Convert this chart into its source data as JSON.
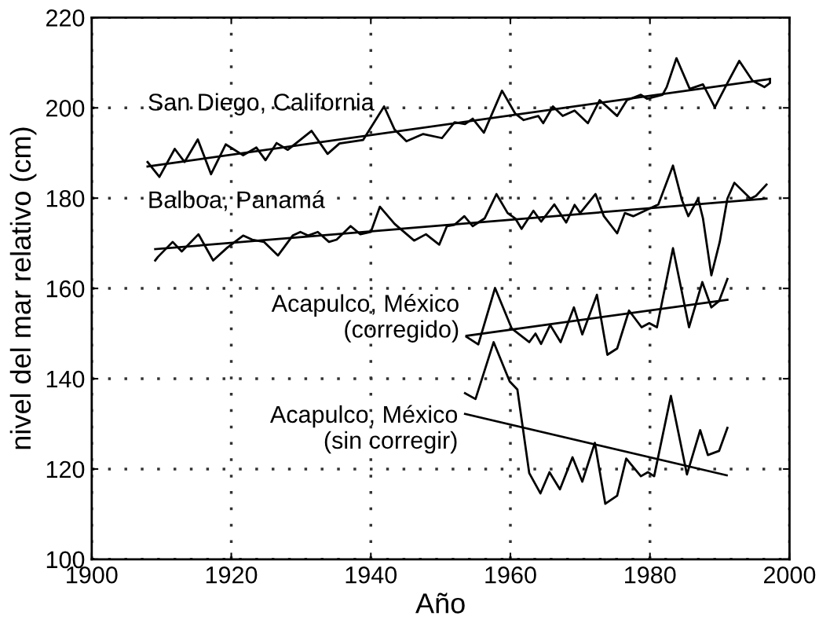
{
  "chart_data": {
    "type": "line",
    "xlabel": "Año",
    "ylabel": "nivel del mar relativo (cm)",
    "xlim": [
      1900,
      2000
    ],
    "xticks": [
      1900,
      1920,
      1940,
      1960,
      1980,
      2000
    ],
    "ylim": [
      100,
      220
    ],
    "yticks": [
      100,
      120,
      140,
      160,
      180,
      200,
      220
    ],
    "grid": true,
    "line_style": "solid",
    "marker": "none",
    "series": [
      {
        "name": "San Diego, California",
        "color": "#000000",
        "x": [
          1908,
          1909.7,
          1911.9,
          1913.3,
          1915.2,
          1917.1,
          1919.2,
          1921.7,
          1923.6,
          1924.9,
          1926.5,
          1928.1,
          1931.5,
          1933.8,
          1935.5,
          1938.9,
          1941.9,
          1943.4,
          1945.1,
          1947.5,
          1950.2,
          1952,
          1953.5,
          1954.6,
          1956.2,
          1958.8,
          1960.7,
          1961.9,
          1964,
          1964.7,
          1966.1,
          1967.5,
          1969.2,
          1971.1,
          1972.8,
          1975.3,
          1976.7,
          1978.7,
          1979.6,
          1981.8,
          1982.4,
          1983.8,
          1985.7,
          1987.6,
          1989.3,
          1991,
          1992.8,
          1994.7,
          1996.4,
          1997.2,
          1997.2
        ],
        "values": [
          188,
          184.7,
          190.9,
          188,
          193,
          185.3,
          191.9,
          189.5,
          191.2,
          188.4,
          192.2,
          190.7,
          194.9,
          189.8,
          192.1,
          192.9,
          200.3,
          195.2,
          192.6,
          194.2,
          193.3,
          196.8,
          196.4,
          197.6,
          194.5,
          203.8,
          198.7,
          197.3,
          198.2,
          196.6,
          200.3,
          198.2,
          199.4,
          196.6,
          201.7,
          198.2,
          201.7,
          202.9,
          202,
          202.9,
          204.6,
          211,
          204.2,
          205.2,
          200.1,
          205.2,
          210.4,
          206,
          204.6,
          205.5,
          206.4
        ]
      },
      {
        "color": "#000000",
        "x": [
          1908,
          1997.2
        ],
        "values": [
          187,
          206.4
        ]
      },
      {
        "name": "Balboa, Panamá",
        "color": "#000000",
        "x": [
          1909.1,
          1909.5,
          1911.6,
          1912.9,
          1915.3,
          1917.4,
          1919.4,
          1921.7,
          1923,
          1924.7,
          1926.7,
          1928.8,
          1929.9,
          1931,
          1932.4,
          1934,
          1935.1,
          1937.1,
          1938.5,
          1940,
          1941.3,
          1943.4,
          1946.2,
          1947.9,
          1949.8,
          1950.9,
          1952,
          1953.4,
          1954.6,
          1956.3,
          1958,
          1959.6,
          1960.7,
          1961.6,
          1963.3,
          1964.4,
          1966.3,
          1968,
          1969.2,
          1970,
          1972.2,
          1973.4,
          1975.3,
          1976.4,
          1977.6,
          1979.8,
          1981.2,
          1983.3,
          1984.6,
          1985.5,
          1986.9,
          1987.6,
          1988.8,
          1990,
          1991.1,
          1992.1,
          1994.4,
          1995.2,
          1996.7
        ],
        "values": [
          166.2,
          167,
          170.3,
          168.2,
          172,
          166.2,
          169,
          171.7,
          170.8,
          170.3,
          167.3,
          171.7,
          172.5,
          171.7,
          172.5,
          170.3,
          170.8,
          173.8,
          172,
          172.5,
          178.1,
          174.3,
          170.6,
          172,
          169.7,
          173.8,
          174.1,
          176,
          173.8,
          175.5,
          180.9,
          176.7,
          175.5,
          173.2,
          177.2,
          174.8,
          178.6,
          174.6,
          178.5,
          176.7,
          180.9,
          176,
          172.2,
          176.7,
          176,
          177.6,
          178.6,
          187.2,
          179.5,
          176,
          179.9,
          175.5,
          162.9,
          170.3,
          179.9,
          183.4,
          179.9,
          180.5,
          183
        ]
      },
      {
        "color": "#000000",
        "x": [
          1909.1,
          1996.7
        ],
        "values": [
          168.7,
          179.9
        ]
      },
      {
        "name": "Acapulco, México\n(corregido)",
        "color": "#000000",
        "x": [
          1953.7,
          1955.4,
          1957.8,
          1960.2,
          1962.7,
          1963.6,
          1964.4,
          1965.7,
          1967.2,
          1969.1,
          1970.3,
          1972.4,
          1973.9,
          1975.3,
          1977,
          1978.8,
          1979.9,
          1981,
          1983.3,
          1985.6,
          1987.5,
          1988.8,
          1989.9,
          1991.1
        ],
        "values": [
          149.3,
          147.6,
          160.1,
          151.1,
          148.1,
          150,
          147.7,
          151.9,
          148.1,
          155.8,
          149.8,
          158.6,
          145.3,
          146.7,
          155.1,
          151.4,
          152.3,
          151.4,
          168.9,
          151.4,
          161.4,
          155.8,
          157.2,
          162.1
        ]
      },
      {
        "color": "#000000",
        "x": [
          1953.7,
          1991.1
        ],
        "values": [
          149.5,
          157.5
        ]
      },
      {
        "name": "Acapulco, México\n(sin corregir)",
        "color": "#000000",
        "x": [
          1953.5,
          1955,
          1957.6,
          1959.9,
          1961,
          1961.8,
          1962.7,
          1964.3,
          1965.6,
          1967.1,
          1968.9,
          1970.3,
          1972.1,
          1973.6,
          1975.3,
          1976.6,
          1978.7,
          1979.7,
          1980.6,
          1983,
          1985.3,
          1987.2,
          1988.3,
          1989.9,
          1991.1
        ],
        "values": [
          136.8,
          135.5,
          148.1,
          139.4,
          137.6,
          128.9,
          119.1,
          114.6,
          119.3,
          115.5,
          122.6,
          117.2,
          125.8,
          112.3,
          114.1,
          122.3,
          118.4,
          119.3,
          118.4,
          136.2,
          118.8,
          128.6,
          123.1,
          124,
          129.1
        ]
      },
      {
        "color": "#000000",
        "x": [
          1953.5,
          1991
        ],
        "values": [
          132.2,
          118.6
        ]
      }
    ]
  }
}
